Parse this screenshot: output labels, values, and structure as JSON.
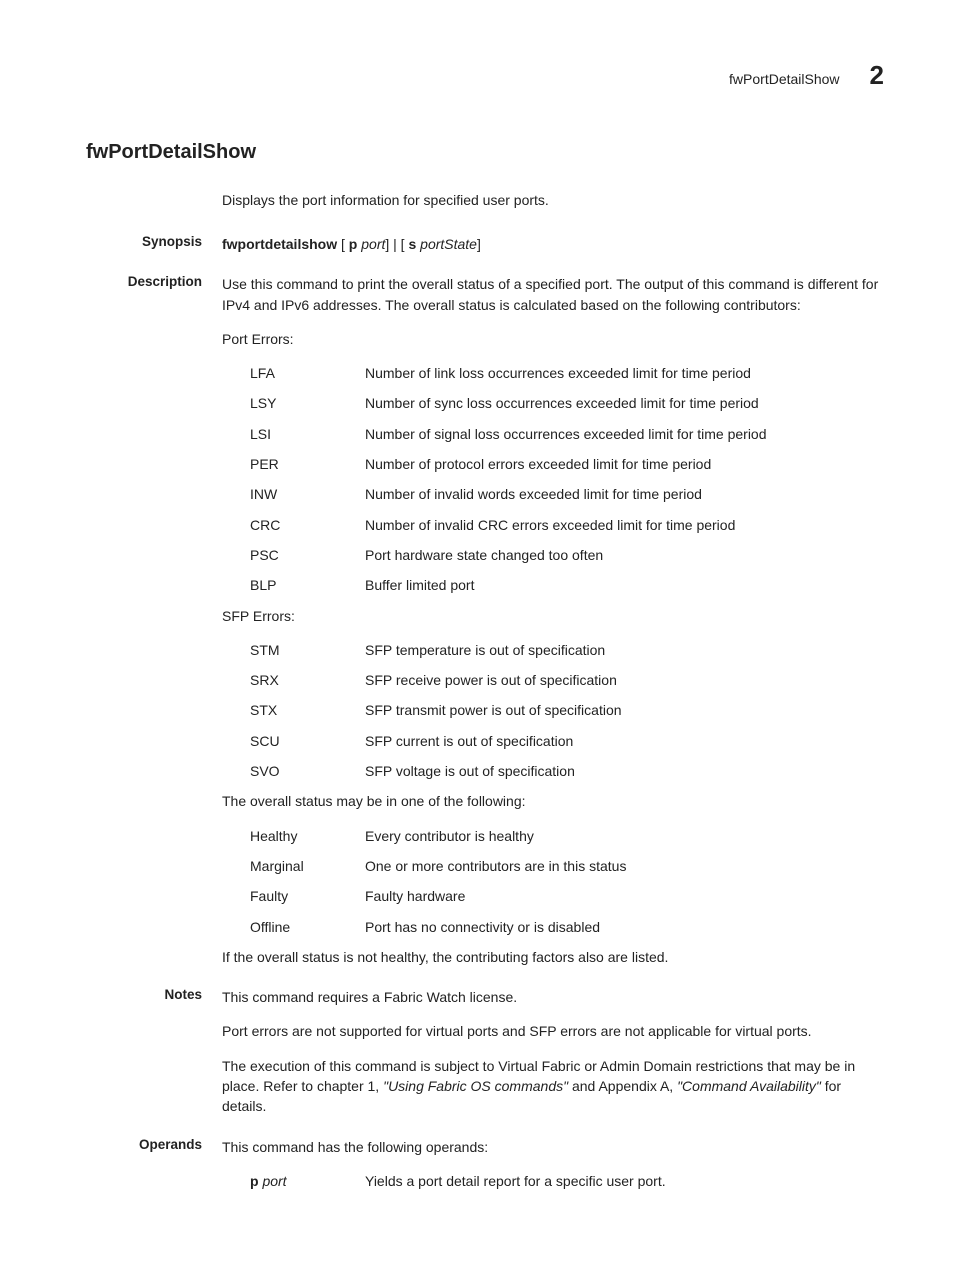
{
  "header": {
    "title": "fwPortDetailShow",
    "chapter_num": "2"
  },
  "main_title": "fwPortDetailShow",
  "intro": "Displays the port information for specified user ports.",
  "synopsis": {
    "label": "Synopsis",
    "cmd": "fwportdetailshow",
    "bracket1_open": " [ ",
    "flag1": "p",
    "arg1": " port",
    "sep": "] | [ ",
    "flag2": "s",
    "arg2": " portState",
    "close": "]"
  },
  "description": {
    "label": "Description",
    "text": "Use this command to print the overall status of a specified port. The output of this command is different for IPv4 and IPv6 addresses. The overall status is calculated based on the following contributors:",
    "port_errors_head": "Port Errors:",
    "port_errors": [
      {
        "term": "LFA",
        "desc": "Number of link loss occurrences exceeded limit for time period"
      },
      {
        "term": "LSY",
        "desc": "Number of sync loss occurrences exceeded limit for time period"
      },
      {
        "term": "LSI",
        "desc": "Number of signal loss occurrences exceeded limit for time period"
      },
      {
        "term": "PER",
        "desc": "Number of protocol errors exceeded limit for time period"
      },
      {
        "term": "INW",
        "desc": "Number of invalid words exceeded limit for time period"
      },
      {
        "term": "CRC",
        "desc": "Number of invalid CRC errors exceeded limit for time period"
      },
      {
        "term": "PSC",
        "desc": "Port hardware state changed too often"
      },
      {
        "term": "BLP",
        "desc": "Buffer limited port"
      }
    ],
    "sfp_errors_head": "SFP Errors:",
    "sfp_errors": [
      {
        "term": "STM",
        "desc": "SFP temperature is out of specification"
      },
      {
        "term": "SRX",
        "desc": "SFP receive power is out of specification"
      },
      {
        "term": "STX",
        "desc": "SFP transmit power is out of specification"
      },
      {
        "term": "SCU",
        "desc": "SFP current is out of specification"
      },
      {
        "term": "SVO",
        "desc": "SFP voltage is out of specification"
      }
    ],
    "status_head": "The overall status may be in one of the following:",
    "statuses": [
      {
        "term": "Healthy",
        "desc": "Every contributor is healthy"
      },
      {
        "term": "Marginal",
        "desc": "One or more contributors are in this status"
      },
      {
        "term": "Faulty",
        "desc": "Faulty hardware"
      },
      {
        "term": "Offline",
        "desc": "Port has no connectivity or is disabled"
      }
    ],
    "closing": "If the overall status is not healthy, the contributing factors also are listed."
  },
  "notes": {
    "label": "Notes",
    "p1": "This command requires a Fabric Watch license.",
    "p2": "Port errors are not supported for virtual ports and SFP errors are not applicable for virtual ports.",
    "p3_pre": "The execution of this command is subject to Virtual Fabric or Admin Domain restrictions that may be in place. Refer to chapter 1, ",
    "p3_i1": "\"Using Fabric OS commands\"",
    "p3_mid": " and Appendix A, ",
    "p3_i2": "\"Command Availability\"",
    "p3_post": " for details."
  },
  "operands": {
    "label": "Operands",
    "intro": "This command has the following operands:",
    "items": [
      {
        "flag": "p",
        "arg": " port",
        "desc": "Yields a port detail report for a specific user port."
      }
    ]
  }
}
